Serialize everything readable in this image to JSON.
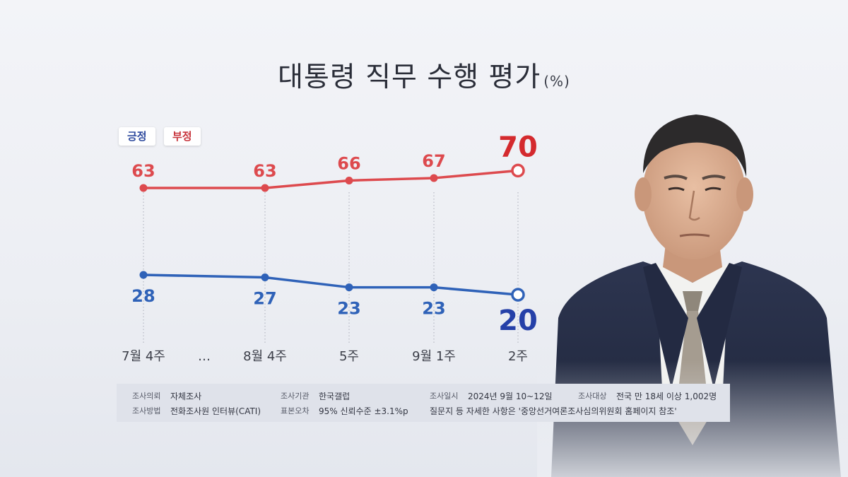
{
  "title": {
    "text": "대통령 직무 수행 평가",
    "unit": "(%)"
  },
  "legend": {
    "positive": "긍정",
    "negative": "부정"
  },
  "chart_data": {
    "type": "line",
    "title": "대통령 직무 수행 평가 (%)",
    "categories": [
      "7월 4주",
      "…",
      "8월 4주",
      "5주",
      "9월 1주",
      "2주"
    ],
    "x": [
      "7월 4주",
      "8월 4주",
      "5주",
      "9월 1주",
      "2주"
    ],
    "series": [
      {
        "name": "긍정",
        "values": [
          28,
          27,
          23,
          23,
          20
        ],
        "color": "#2f62b8"
      },
      {
        "name": "부정",
        "values": [
          63,
          63,
          66,
          67,
          70
        ],
        "color": "#dd4a4e"
      }
    ],
    "colors": {
      "positive_last": "#2540a8",
      "negative_last": "#d42a2e"
    },
    "legend_position": "top-left",
    "grid": false
  },
  "survey_info": {
    "commission_label": "조사의뢰",
    "commission_value": "자체조사",
    "agency_label": "조사기관",
    "agency_value": "한국갤럽",
    "date_label": "조사일시",
    "date_value": "2024년 9월 10~12일",
    "target_label": "조사대상",
    "target_value": "전국 만 18세 이상 1,002명",
    "method_label": "조사방법",
    "method_value": "전화조사원 인터뷰(CATI)",
    "error_label": "표본오차",
    "error_value": "95% 신뢰수준 ±3.1%p",
    "note": "질문지 등 자세한 사항은 '중앙선거여론조사심의위원회 홈페이지 참조'"
  }
}
